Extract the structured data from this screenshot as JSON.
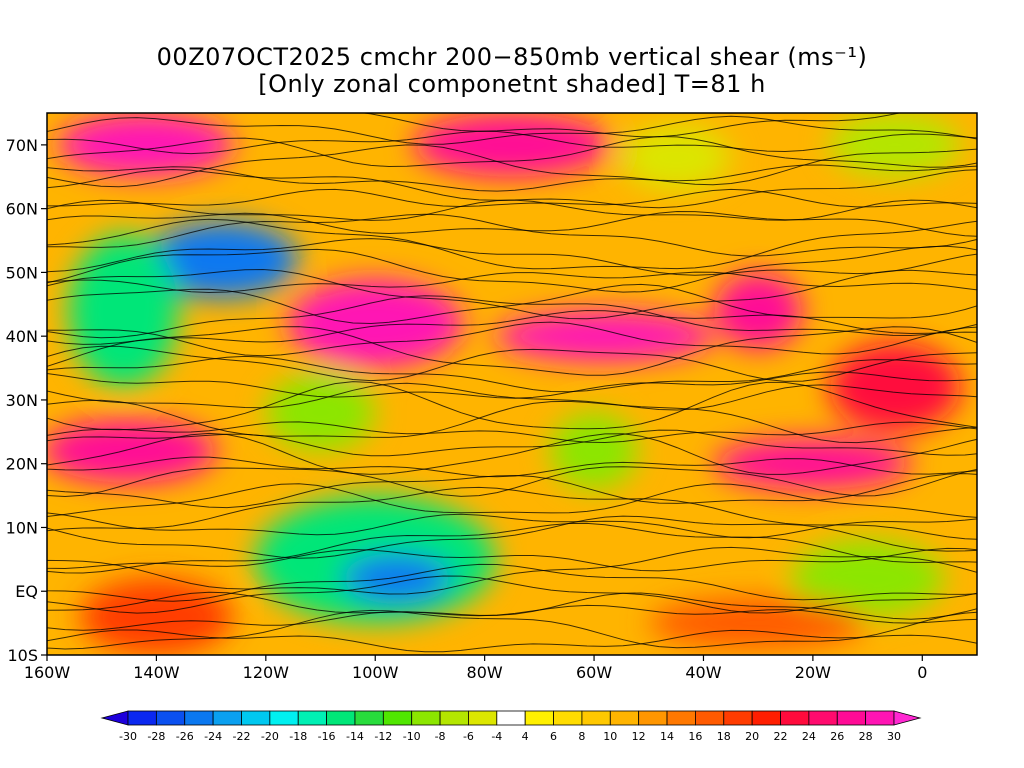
{
  "title": {
    "line1": "00Z07OCT2025 cmchr 200−850mb vertical shear (ms⁻¹)",
    "line2": "[Only zonal componetnt shaded] T=81 h"
  },
  "map": {
    "lon_range": [
      -160,
      10
    ],
    "lat_range": [
      -10,
      75
    ],
    "lat_ticks": [
      {
        "value": 70,
        "label": "70N"
      },
      {
        "value": 60,
        "label": "60N"
      },
      {
        "value": 50,
        "label": "50N"
      },
      {
        "value": 40,
        "label": "40N"
      },
      {
        "value": 30,
        "label": "30N"
      },
      {
        "value": 20,
        "label": "20N"
      },
      {
        "value": 10,
        "label": "10N"
      },
      {
        "value": 0,
        "label": "EQ"
      },
      {
        "value": -10,
        "label": "10S"
      }
    ],
    "lon_ticks": [
      {
        "value": -160,
        "label": "160W"
      },
      {
        "value": -140,
        "label": "140W"
      },
      {
        "value": -120,
        "label": "120W"
      },
      {
        "value": -100,
        "label": "100W"
      },
      {
        "value": -80,
        "label": "80W"
      },
      {
        "value": -60,
        "label": "60W"
      },
      {
        "value": -40,
        "label": "40W"
      },
      {
        "value": -20,
        "label": "20W"
      },
      {
        "value": 0,
        "label": "0"
      }
    ],
    "shear_blobs": [
      {
        "lon": -128,
        "lat": 52,
        "rx": 14,
        "ry": 6,
        "u": -26
      },
      {
        "lon": -146,
        "lat": 44,
        "rx": 10,
        "ry": 12,
        "u": -16
      },
      {
        "lon": -110,
        "lat": 28,
        "rx": 10,
        "ry": 6,
        "u": -10
      },
      {
        "lon": -100,
        "lat": 5,
        "rx": 22,
        "ry": 10,
        "u": -16
      },
      {
        "lon": -96,
        "lat": 2,
        "rx": 10,
        "ry": 4,
        "u": -26
      },
      {
        "lon": -60,
        "lat": 22,
        "rx": 8,
        "ry": 6,
        "u": -10
      },
      {
        "lon": -10,
        "lat": 2,
        "rx": 14,
        "ry": 6,
        "u": -10
      },
      {
        "lon": -5,
        "lat": 70,
        "rx": 12,
        "ry": 5,
        "u": -8
      },
      {
        "lon": -45,
        "lat": 68,
        "rx": 10,
        "ry": 5,
        "u": -6
      },
      {
        "lon": -142,
        "lat": 70,
        "rx": 16,
        "ry": 5,
        "u": 28
      },
      {
        "lon": -100,
        "lat": 42,
        "rx": 16,
        "ry": 7,
        "u": 28
      },
      {
        "lon": -58,
        "lat": 40,
        "rx": 20,
        "ry": 4,
        "u": 28
      },
      {
        "lon": -30,
        "lat": 44,
        "rx": 8,
        "ry": 6,
        "u": 26
      },
      {
        "lon": -145,
        "lat": 22,
        "rx": 16,
        "ry": 5,
        "u": 26
      },
      {
        "lon": -5,
        "lat": 32,
        "rx": 12,
        "ry": 7,
        "u": 22
      },
      {
        "lon": -20,
        "lat": 20,
        "rx": 18,
        "ry": 4,
        "u": 26
      },
      {
        "lon": -140,
        "lat": -4,
        "rx": 14,
        "ry": 6,
        "u": 18
      },
      {
        "lon": -30,
        "lat": -5,
        "rx": 20,
        "ry": 4,
        "u": 16
      },
      {
        "lon": -75,
        "lat": 70,
        "rx": 18,
        "ry": 5,
        "u": 26
      }
    ]
  },
  "colorbar": {
    "levels": [
      "-30",
      "-28",
      "-26",
      "-24",
      "-22",
      "-20",
      "-18",
      "-16",
      "-14",
      "-12",
      "-10",
      "-8",
      "-6",
      "-4",
      "4",
      "6",
      "8",
      "10",
      "12",
      "14",
      "16",
      "18",
      "20",
      "22",
      "24",
      "26",
      "28",
      "30"
    ],
    "colors": [
      "#1e00dc",
      "#0a28f0",
      "#0a50f0",
      "#0a78f0",
      "#0aa0f0",
      "#00c8f0",
      "#00f0f0",
      "#00f0b4",
      "#00e678",
      "#28dc3c",
      "#50e600",
      "#8ce600",
      "#b4e600",
      "#dce600",
      "#ffffff",
      "#fff000",
      "#ffdc00",
      "#ffc800",
      "#ffb400",
      "#ff9600",
      "#ff7800",
      "#ff5a00",
      "#ff3c00",
      "#ff1e00",
      "#ff0a3c",
      "#ff0a6e",
      "#ff0a96",
      "#ff14b4",
      "#ff28d2"
    ]
  }
}
